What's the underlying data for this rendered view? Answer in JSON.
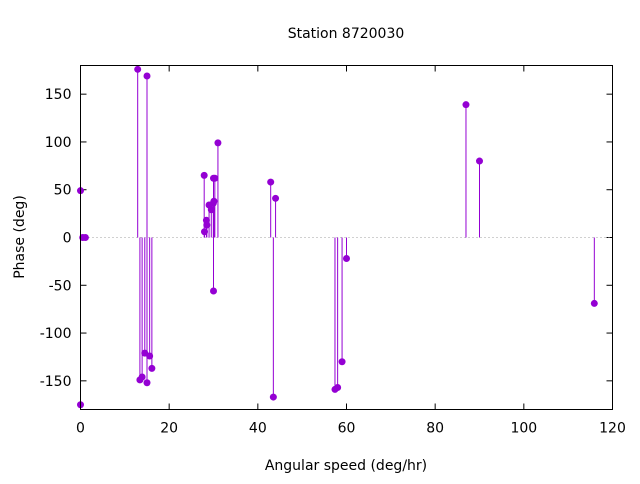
{
  "chart_data": {
    "type": "impulse-scatter",
    "title": "Station 8720030",
    "xlabel": "Angular speed (deg/hr)",
    "ylabel": "Phase (deg)",
    "xlim": [
      0,
      120
    ],
    "ylim": [
      -180,
      180
    ],
    "xticks": [
      0,
      20,
      40,
      60,
      80,
      100,
      120
    ],
    "yticks": [
      -150,
      -100,
      -50,
      0,
      50,
      100,
      150
    ],
    "grid": false,
    "zero_line": true,
    "series": [
      {
        "name": "phase",
        "color": "#9400d3",
        "points": [
          [
            0.0,
            -175
          ],
          [
            0.0,
            49
          ],
          [
            0.5,
            0
          ],
          [
            1.1,
            0
          ],
          [
            12.9,
            176
          ],
          [
            13.4,
            -149
          ],
          [
            13.9,
            -146
          ],
          [
            14.5,
            -121
          ],
          [
            15.0,
            -152
          ],
          [
            15.0,
            169
          ],
          [
            15.6,
            -124
          ],
          [
            16.1,
            -137
          ],
          [
            27.9,
            65
          ],
          [
            27.97,
            6
          ],
          [
            28.4,
            18
          ],
          [
            28.5,
            13
          ],
          [
            29.0,
            34
          ],
          [
            29.5,
            29
          ],
          [
            29.96,
            36
          ],
          [
            30.0,
            -56
          ],
          [
            30.0,
            62
          ],
          [
            30.1,
            38
          ],
          [
            30.3,
            62
          ],
          [
            31.0,
            99
          ],
          [
            42.9,
            58
          ],
          [
            43.5,
            -167
          ],
          [
            44.0,
            41
          ],
          [
            57.4,
            -159
          ],
          [
            58.0,
            -157
          ],
          [
            59.0,
            -130
          ],
          [
            60.0,
            -22
          ],
          [
            86.95,
            139
          ],
          [
            90.0,
            80
          ],
          [
            115.9,
            -69
          ]
        ]
      }
    ]
  }
}
